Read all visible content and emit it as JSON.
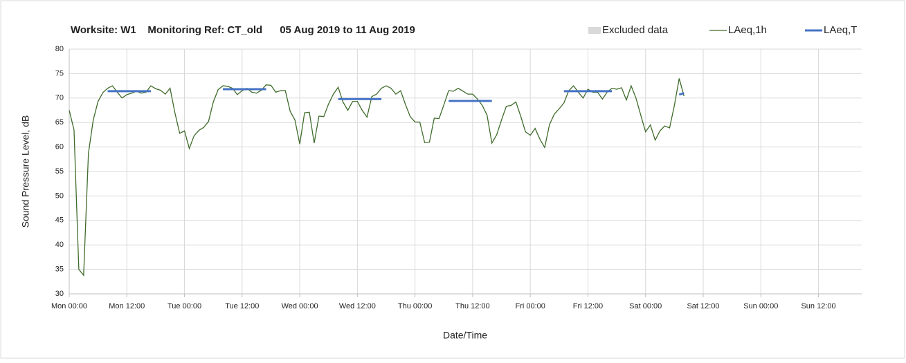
{
  "chart_data": {
    "type": "line",
    "title": "Worksite: W1    Monitoring Ref: CT_old      05 Aug 2019 to 11 Aug 2019",
    "xlabel": "Date/Time",
    "ylabel": "Sound Pressure Level, dB",
    "x": [
      0,
      1,
      2,
      3,
      4,
      5,
      6,
      7,
      8,
      9,
      10,
      11,
      12,
      13,
      14,
      15,
      16,
      17,
      18,
      19,
      20,
      21,
      22,
      23,
      24,
      25,
      26,
      27,
      28,
      29,
      30,
      31,
      32,
      33,
      34,
      35,
      36,
      37,
      38,
      39,
      40,
      41,
      42,
      43,
      44,
      45,
      46,
      47,
      48,
      49,
      50,
      51,
      52,
      53,
      54,
      55,
      56,
      57,
      58,
      59,
      60,
      61,
      62,
      63,
      64,
      65,
      66,
      67,
      68,
      69,
      70,
      71,
      72,
      73,
      74,
      75,
      76,
      77,
      78,
      79,
      80,
      81,
      82,
      83,
      84,
      85,
      86,
      87,
      88,
      89,
      90,
      91,
      92,
      93,
      94,
      95,
      96,
      97,
      98,
      99,
      100,
      101,
      102,
      103,
      104,
      105,
      106,
      107,
      108,
      109,
      110,
      111,
      112,
      113,
      114,
      115,
      116,
      117,
      118,
      119,
      120,
      121,
      122,
      123,
      124,
      125,
      126,
      127,
      128
    ],
    "series": [
      {
        "name": "Excluded data",
        "color": "#d9d9d9"
      },
      {
        "name": "LAeq,1h",
        "color": "#3e6b2a",
        "values": [
          67.5,
          63.5,
          35,
          33.8,
          58.7,
          65.5,
          69.3,
          71.1,
          72,
          72.5,
          71.2,
          70,
          70.7,
          71,
          71.4,
          71,
          71.2,
          72.5,
          71.9,
          71.6,
          70.8,
          72,
          67,
          62.8,
          63.3,
          59.7,
          62.3,
          63.4,
          64,
          65.2,
          69.2,
          71.7,
          72.5,
          72.4,
          72,
          70.7,
          71.5,
          72,
          71.2,
          71,
          71.6,
          72.7,
          72.6,
          71.2,
          71.5,
          71.5,
          67.3,
          65.5,
          60.6,
          67,
          67.1,
          60.8,
          66.3,
          66.2,
          68.8,
          70.8,
          72.2,
          69.2,
          67.5,
          69.3,
          69.3,
          67.5,
          66.1,
          70.3,
          70.8,
          72,
          72.5,
          72,
          70.8,
          71.5,
          68.7,
          66.2,
          65.1,
          65.1,
          60.9,
          61,
          65.9,
          65.8,
          68.6,
          71.5,
          71.4,
          72,
          71.4,
          70.8,
          70.8,
          69.8,
          68.5,
          66.5,
          60.8,
          62.5,
          65.5,
          68.3,
          68.5,
          69.2,
          66.3,
          63.1,
          62.4,
          63.8,
          61.6,
          59.9,
          64.6,
          66.7,
          67.8,
          69,
          71.5,
          72.5,
          71.2,
          70,
          71.8,
          71.2,
          71.2,
          69.8,
          71.2,
          72,
          71.8,
          72.1,
          69.6,
          72.5,
          70,
          66.5,
          63.1,
          64.5,
          61.4,
          63.3,
          64.3,
          63.9,
          68.5,
          74,
          70.4
        ]
      },
      {
        "name": "LAeq,T",
        "color": "#4472c4",
        "values": [
          null,
          null,
          null,
          null,
          null,
          null,
          null,
          null,
          71.4,
          71.4,
          71.4,
          71.4,
          71.4,
          71.4,
          71.4,
          71.4,
          71.4,
          71.4,
          null,
          null,
          null,
          null,
          null,
          null,
          null,
          null,
          null,
          null,
          null,
          null,
          null,
          null,
          71.8,
          71.8,
          71.8,
          71.8,
          71.8,
          71.8,
          71.8,
          71.8,
          71.8,
          71.8,
          null,
          null,
          null,
          null,
          null,
          null,
          null,
          null,
          null,
          null,
          null,
          null,
          null,
          null,
          69.8,
          69.8,
          69.8,
          69.8,
          69.8,
          69.8,
          69.8,
          69.8,
          69.8,
          69.8,
          null,
          null,
          null,
          null,
          null,
          null,
          null,
          null,
          null,
          null,
          null,
          null,
          null,
          69.4,
          69.4,
          69.4,
          69.4,
          69.4,
          69.4,
          69.4,
          69.4,
          69.4,
          69.4,
          null,
          null,
          null,
          null,
          null,
          null,
          null,
          null,
          null,
          null,
          null,
          null,
          null,
          null,
          71.4,
          71.4,
          71.4,
          71.4,
          71.4,
          71.4,
          71.4,
          71.4,
          71.4,
          71.4,
          71.4,
          null,
          null,
          null,
          null,
          null,
          null,
          null,
          null,
          null,
          null,
          null,
          null,
          null,
          70.7,
          71.0
        ]
      }
    ],
    "xlim": [
      0,
      165
    ],
    "xticks": [
      {
        "value": 0,
        "label": "Mon 00:00"
      },
      {
        "value": 12,
        "label": "Mon 12:00"
      },
      {
        "value": 24,
        "label": "Tue 00:00"
      },
      {
        "value": 36,
        "label": "Tue 12:00"
      },
      {
        "value": 48,
        "label": "Wed 00:00"
      },
      {
        "value": 60,
        "label": "Wed 12:00"
      },
      {
        "value": 72,
        "label": "Thu 00:00"
      },
      {
        "value": 84,
        "label": "Thu 12:00"
      },
      {
        "value": 96,
        "label": "Fri 00:00"
      },
      {
        "value": 108,
        "label": "Fri 12:00"
      },
      {
        "value": 120,
        "label": "Sat 00:00"
      },
      {
        "value": 132,
        "label": "Sat 12:00"
      },
      {
        "value": 144,
        "label": "Sun 00:00"
      },
      {
        "value": 156,
        "label": "Sun 12:00"
      }
    ],
    "ylim": [
      30,
      80
    ],
    "yticks": [
      30,
      35,
      40,
      45,
      50,
      55,
      60,
      65,
      70,
      75,
      80
    ],
    "grid": true
  }
}
